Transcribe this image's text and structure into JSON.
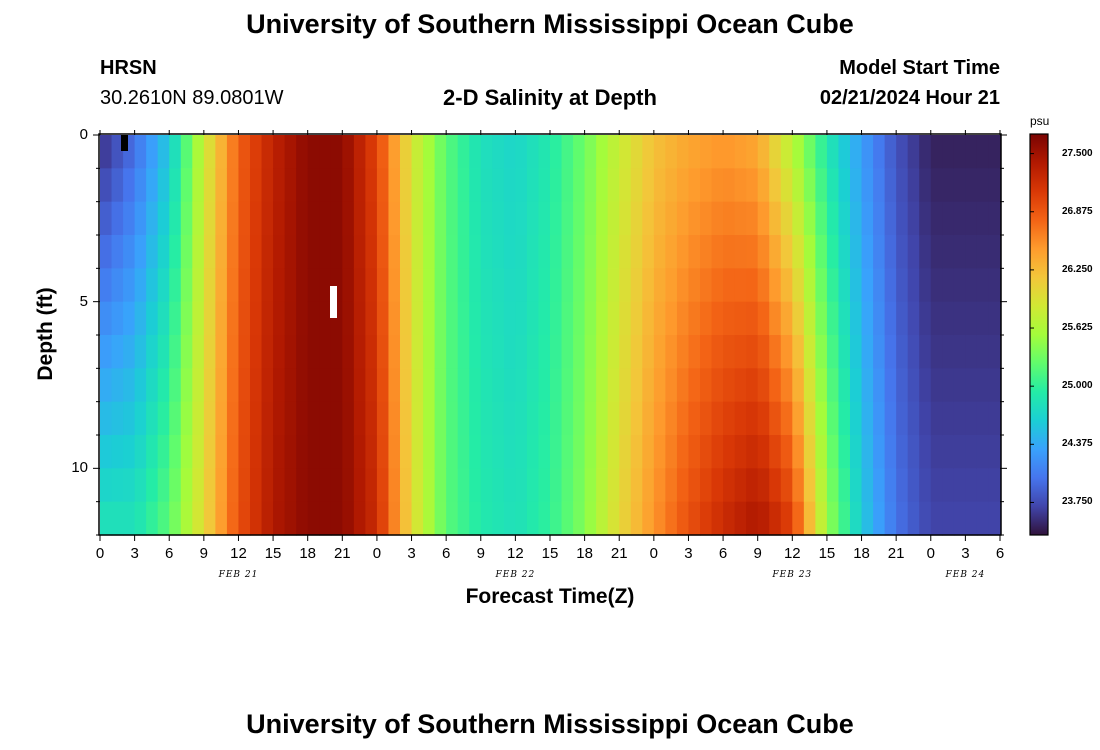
{
  "titles": {
    "main": "University of Southern Mississippi Ocean Cube",
    "repeat": "University of Southern Mississippi Ocean Cube"
  },
  "station": {
    "name": "HRSN",
    "coords": "30.2610N  89.0801W"
  },
  "plot_title": "2-D Salinity at Depth",
  "model_start": {
    "label": "Model Start Time",
    "value": "02/21/2024 Hour 21"
  },
  "colorbar": {
    "unit": "psu",
    "ticks": [
      "27.500",
      "26.875",
      "26.250",
      "25.625",
      "25.000",
      "24.375",
      "23.750"
    ]
  },
  "chart_data": {
    "type": "heatmap",
    "variable": "Salinity",
    "unit": "psu",
    "xlabel": "Forecast Time(Z)",
    "ylabel": "Depth (ft)",
    "x_ticks": [
      "0",
      "3",
      "6",
      "9",
      "12",
      "15",
      "18",
      "21",
      "0",
      "3",
      "6",
      "9",
      "12",
      "15",
      "18",
      "21",
      "0",
      "3",
      "6",
      "9",
      "12",
      "15",
      "18",
      "21",
      "0",
      "3",
      "6"
    ],
    "x_hours": [
      0,
      3,
      6,
      9,
      12,
      15,
      18,
      21,
      24,
      27,
      30,
      33,
      36,
      39,
      42,
      45,
      48,
      51,
      54,
      57,
      60,
      63,
      66,
      69,
      72,
      75,
      78
    ],
    "months": [
      {
        "label": "FEB 21",
        "hour": 12
      },
      {
        "label": "FEB 22",
        "hour": 36
      },
      {
        "label": "FEB 23",
        "hour": 60
      },
      {
        "label": "FEB 24",
        "hour": 75
      }
    ],
    "xlim": [
      0,
      78
    ],
    "y_ticks": [
      0,
      5,
      10
    ],
    "ylim": [
      0,
      12
    ],
    "clim": [
      23.4,
      27.7
    ],
    "profile_hours": [
      0,
      3,
      6,
      9,
      12,
      15,
      18,
      21,
      24,
      27,
      30,
      33,
      36,
      39,
      42,
      45,
      48,
      51,
      54,
      57,
      60,
      63,
      66,
      69,
      72,
      75,
      78
    ],
    "surface_psu": [
      23.6,
      24.0,
      24.6,
      25.8,
      26.8,
      27.3,
      27.6,
      27.6,
      27.0,
      25.9,
      25.2,
      24.8,
      24.7,
      24.9,
      25.3,
      25.8,
      26.2,
      26.4,
      26.5,
      26.4,
      25.7,
      24.9,
      24.3,
      23.8,
      23.5,
      23.5,
      23.5
    ],
    "bottom_psu": [
      24.8,
      24.8,
      25.2,
      26.0,
      26.9,
      27.4,
      27.6,
      27.6,
      27.2,
      26.0,
      25.2,
      24.9,
      24.8,
      25.0,
      25.4,
      26.0,
      26.5,
      26.9,
      27.2,
      27.4,
      27.0,
      25.5,
      24.6,
      24.0,
      23.7,
      23.7,
      23.7
    ],
    "grid": false
  },
  "colors": {
    "colormap": [
      "#30123b",
      "#4145ab",
      "#4675ed",
      "#39a2fc",
      "#1bcfd4",
      "#24eca6",
      "#61fc6c",
      "#a4fc3b",
      "#d1e834",
      "#f3c63a",
      "#fe9b2d",
      "#f36315",
      "#d93806",
      "#b11901",
      "#7a0402"
    ]
  }
}
